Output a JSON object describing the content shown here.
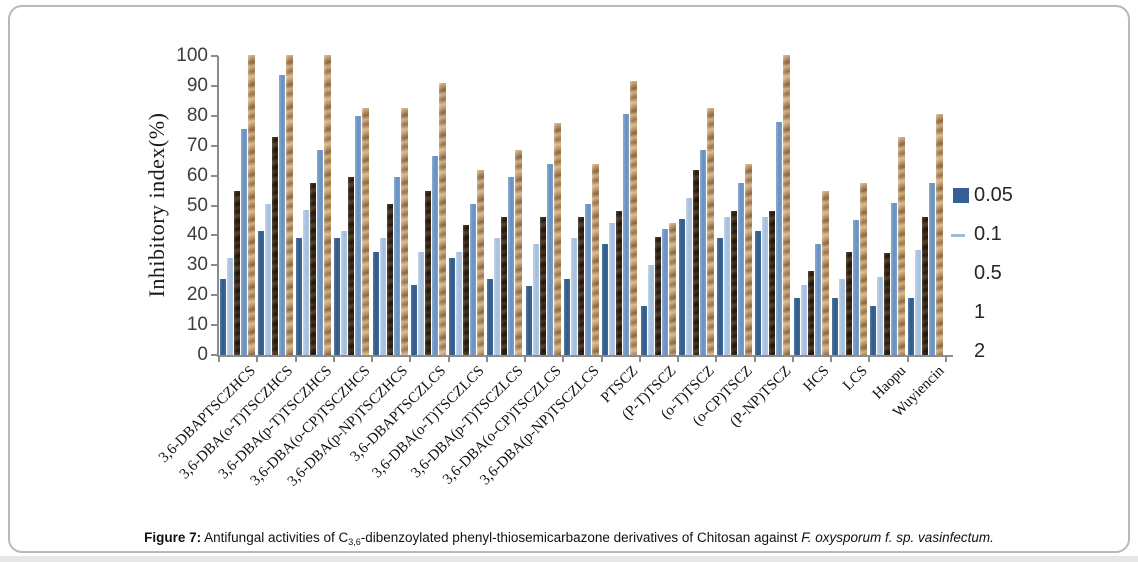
{
  "figure": {
    "caption": {
      "label": "Figure 7:",
      "text_before_sub": " Antifungal activities of C",
      "subscript": "3,6",
      "text_after_sub": "-dibenzoylated phenyl-thiosemicarbazone derivatives of Chitosan against ",
      "italic_tail": "F. oxysporum f. sp. vasinfectum."
    }
  },
  "chart_data": {
    "type": "bar",
    "title": "",
    "xlabel": "",
    "ylabel": "Inhibitory index(%)",
    "ylim": [
      0,
      100
    ],
    "yticks": [
      0,
      10,
      20,
      30,
      40,
      50,
      60,
      70,
      80,
      90,
      100
    ],
    "grid": "off",
    "legend_position": "right",
    "categories": [
      "3,6-DBAPTSCZHCS",
      "3,6-DBA(o-T)TSCZHCS",
      "3,6-DBA(p-T)TSCZHCS",
      "3,6-DBA(o-CP)TSCZHCS",
      "3,6-DBA(p-NP)TSCZHCS",
      "3,6-DBAPTSCZLCS",
      "3,6-DBA(o-T)TSCZLCS",
      "3,6-DBA(p-T)TSCZLCS",
      "3,6-DBA(o-CP)TSCZLCS",
      "3,6-DBA(p-NP)TSCZLCS",
      "PTSCZ",
      "(P-T)TSCZ",
      "(o-T)TSCZ",
      "(o-CP)TSCZ",
      "(P-NP)TSCZ",
      "HCS",
      "LCS",
      "Haopu",
      "Wuyiencin"
    ],
    "series": [
      {
        "name": "0.05",
        "color": "#366092",
        "values": [
          25.5,
          41.5,
          39,
          39,
          34.5,
          23.5,
          32.5,
          25.5,
          23,
          25.5,
          37,
          16.5,
          45.5,
          39,
          41.5,
          19,
          19,
          16.5,
          19
        ]
      },
      {
        "name": "0.1",
        "color": "#A9C3DF",
        "values": [
          32.5,
          50.5,
          48.5,
          41.5,
          39,
          34.5,
          34.5,
          39,
          37,
          39,
          44,
          30,
          52.5,
          46,
          46,
          23.5,
          25.5,
          26,
          35
        ]
      },
      {
        "name": "0.5",
        "color": "#2E2118",
        "values": [
          55,
          73,
          57.5,
          59.5,
          50.5,
          55,
          43.5,
          46,
          46,
          46,
          48,
          39.5,
          62,
          48,
          48,
          28,
          34.5,
          34,
          46
        ]
      },
      {
        "name": "1",
        "color": "#6D95C4",
        "values": [
          75.5,
          93.5,
          68.5,
          80,
          59.5,
          66.5,
          50.5,
          59.5,
          64,
          50.5,
          80.5,
          42,
          68.5,
          57.5,
          78,
          37,
          45,
          51,
          57.5
        ]
      },
      {
        "name": "2",
        "color": "#C2A177",
        "values": [
          100.5,
          100.5,
          100.5,
          82.5,
          82.5,
          91,
          62,
          68.5,
          77.5,
          64,
          91.5,
          44,
          82.5,
          64,
          100.5,
          55,
          57.5,
          73,
          80.5
        ]
      }
    ],
    "legend": {
      "items": [
        {
          "label": "0.05",
          "marker": "square",
          "color": "#366092"
        },
        {
          "label": "0.1",
          "marker": "dash",
          "color": "#9DBBDC"
        },
        {
          "label": "0.5",
          "marker": "none"
        },
        {
          "label": "1",
          "marker": "none"
        },
        {
          "label": "2",
          "marker": "none"
        }
      ]
    }
  }
}
